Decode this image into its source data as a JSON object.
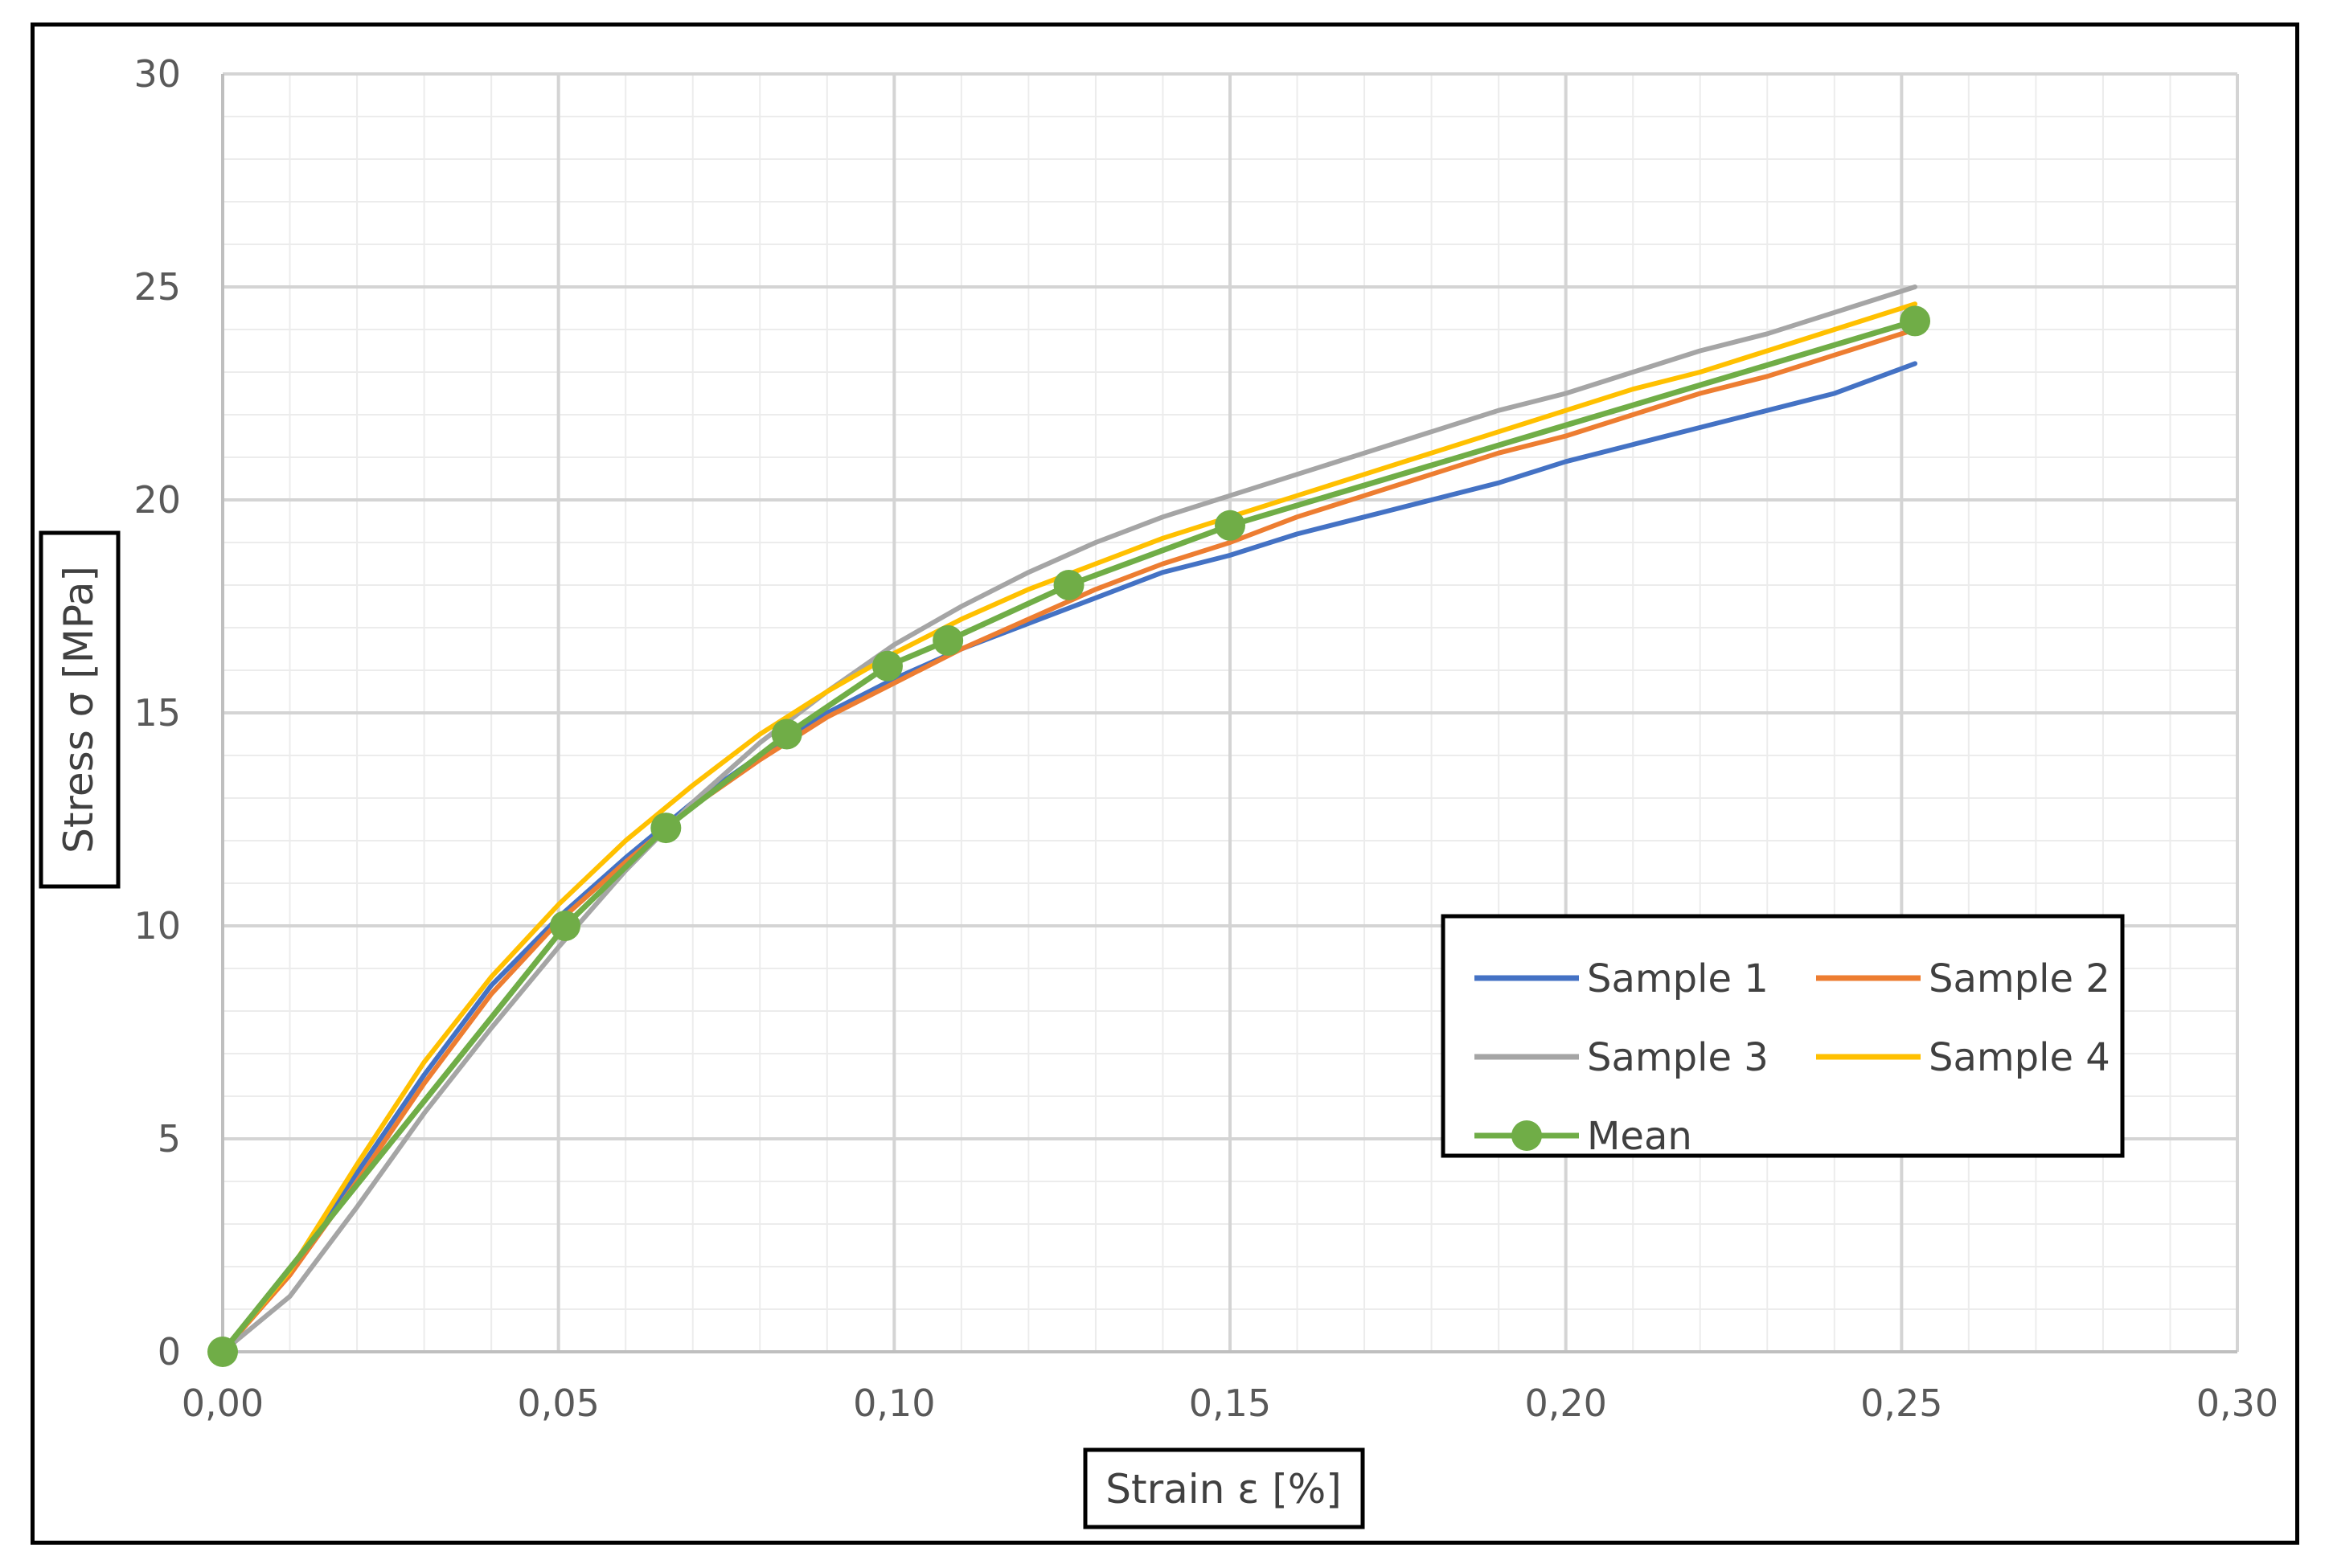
{
  "chart_data": {
    "type": "line",
    "xlabel": "Strain ε [%]",
    "ylabel": "Stress σ [MPa]",
    "xlim": [
      0,
      0.3
    ],
    "ylim": [
      0,
      30
    ],
    "x_ticks": [
      "0,00",
      "0,05",
      "0,10",
      "0,15",
      "0,20",
      "0,25",
      "0,30"
    ],
    "y_ticks": [
      "0",
      "5",
      "10",
      "15",
      "20",
      "25",
      "30"
    ],
    "grid": true,
    "legend_position": "bottom-right",
    "series": [
      {
        "name": "Sample 1",
        "color": "#4472C4",
        "points": [
          [
            0,
            0
          ],
          [
            0.01,
            1.9
          ],
          [
            0.02,
            4.2
          ],
          [
            0.03,
            6.5
          ],
          [
            0.04,
            8.6
          ],
          [
            0.05,
            10.2
          ],
          [
            0.06,
            11.6
          ],
          [
            0.07,
            12.9
          ],
          [
            0.08,
            14.0
          ],
          [
            0.09,
            15.0
          ],
          [
            0.1,
            15.8
          ],
          [
            0.11,
            16.5
          ],
          [
            0.12,
            17.1
          ],
          [
            0.13,
            17.7
          ],
          [
            0.14,
            18.3
          ],
          [
            0.15,
            18.7
          ],
          [
            0.16,
            19.2
          ],
          [
            0.17,
            19.6
          ],
          [
            0.18,
            20.0
          ],
          [
            0.19,
            20.4
          ],
          [
            0.2,
            20.9
          ],
          [
            0.21,
            21.3
          ],
          [
            0.22,
            21.7
          ],
          [
            0.23,
            22.1
          ],
          [
            0.24,
            22.5
          ],
          [
            0.252,
            23.2
          ]
        ]
      },
      {
        "name": "Sample 2",
        "color": "#ED7D31",
        "points": [
          [
            0,
            0
          ],
          [
            0.01,
            1.8
          ],
          [
            0.02,
            4.0
          ],
          [
            0.03,
            6.3
          ],
          [
            0.04,
            8.4
          ],
          [
            0.05,
            10.1
          ],
          [
            0.06,
            11.5
          ],
          [
            0.07,
            12.8
          ],
          [
            0.08,
            13.9
          ],
          [
            0.09,
            14.9
          ],
          [
            0.1,
            15.7
          ],
          [
            0.11,
            16.5
          ],
          [
            0.12,
            17.2
          ],
          [
            0.13,
            17.9
          ],
          [
            0.14,
            18.5
          ],
          [
            0.15,
            19.0
          ],
          [
            0.16,
            19.6
          ],
          [
            0.17,
            20.1
          ],
          [
            0.18,
            20.6
          ],
          [
            0.19,
            21.1
          ],
          [
            0.2,
            21.5
          ],
          [
            0.21,
            22.0
          ],
          [
            0.22,
            22.5
          ],
          [
            0.23,
            22.9
          ],
          [
            0.24,
            23.4
          ],
          [
            0.252,
            24.0
          ]
        ]
      },
      {
        "name": "Sample 3",
        "color": "#A5A5A5",
        "points": [
          [
            0,
            0
          ],
          [
            0.01,
            1.3
          ],
          [
            0.02,
            3.4
          ],
          [
            0.03,
            5.6
          ],
          [
            0.04,
            7.6
          ],
          [
            0.05,
            9.5
          ],
          [
            0.06,
            11.3
          ],
          [
            0.07,
            12.9
          ],
          [
            0.08,
            14.3
          ],
          [
            0.09,
            15.5
          ],
          [
            0.1,
            16.6
          ],
          [
            0.11,
            17.5
          ],
          [
            0.12,
            18.3
          ],
          [
            0.13,
            19.0
          ],
          [
            0.14,
            19.6
          ],
          [
            0.15,
            20.1
          ],
          [
            0.16,
            20.6
          ],
          [
            0.17,
            21.1
          ],
          [
            0.18,
            21.6
          ],
          [
            0.19,
            22.1
          ],
          [
            0.2,
            22.5
          ],
          [
            0.21,
            23.0
          ],
          [
            0.22,
            23.5
          ],
          [
            0.23,
            23.9
          ],
          [
            0.24,
            24.4
          ],
          [
            0.252,
            25.0
          ]
        ]
      },
      {
        "name": "Sample 4",
        "color": "#FFC000",
        "points": [
          [
            0,
            0
          ],
          [
            0.01,
            1.9
          ],
          [
            0.02,
            4.4
          ],
          [
            0.03,
            6.8
          ],
          [
            0.04,
            8.8
          ],
          [
            0.05,
            10.5
          ],
          [
            0.06,
            12.0
          ],
          [
            0.07,
            13.3
          ],
          [
            0.08,
            14.5
          ],
          [
            0.09,
            15.5
          ],
          [
            0.1,
            16.4
          ],
          [
            0.11,
            17.2
          ],
          [
            0.12,
            17.9
          ],
          [
            0.13,
            18.5
          ],
          [
            0.14,
            19.1
          ],
          [
            0.15,
            19.6
          ],
          [
            0.16,
            20.1
          ],
          [
            0.17,
            20.6
          ],
          [
            0.18,
            21.1
          ],
          [
            0.19,
            21.6
          ],
          [
            0.2,
            22.1
          ],
          [
            0.21,
            22.6
          ],
          [
            0.22,
            23.0
          ],
          [
            0.23,
            23.5
          ],
          [
            0.24,
            24.0
          ],
          [
            0.252,
            24.6
          ]
        ]
      },
      {
        "name": "Mean",
        "color": "#70AD47",
        "markers": true,
        "points": [
          [
            0,
            0
          ],
          [
            0.051,
            10.0
          ],
          [
            0.066,
            12.3
          ],
          [
            0.084,
            14.5
          ],
          [
            0.099,
            16.1
          ],
          [
            0.108,
            16.7
          ],
          [
            0.126,
            18.0
          ],
          [
            0.15,
            19.4
          ],
          [
            0.252,
            24.2
          ]
        ]
      }
    ]
  }
}
